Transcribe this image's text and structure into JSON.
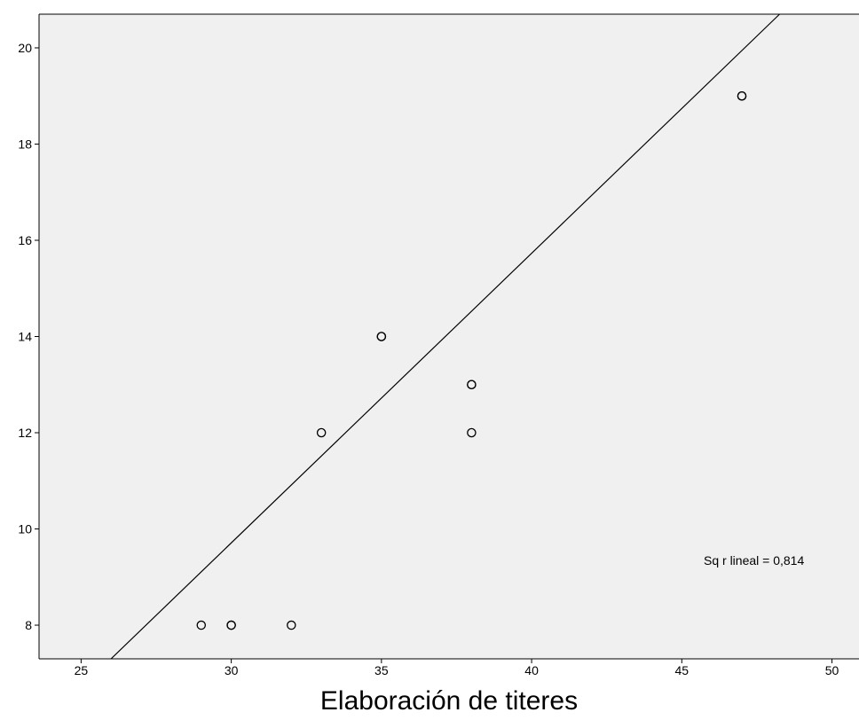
{
  "chart_data": {
    "type": "scatter",
    "title": "",
    "xlabel": "Elaboración de titeres",
    "ylabel": "",
    "xlim": [
      23.6,
      50.9
    ],
    "ylim": [
      7.3,
      20.7
    ],
    "x_ticks": [
      "25",
      "30",
      "35",
      "40",
      "45",
      "50"
    ],
    "y_ticks": [
      "8",
      "10",
      "12",
      "14",
      "16",
      "18",
      "20"
    ],
    "points": [
      {
        "x": 29,
        "y": 8
      },
      {
        "x": 30,
        "y": 8
      },
      {
        "x": 30,
        "y": 8
      },
      {
        "x": 32,
        "y": 8
      },
      {
        "x": 33,
        "y": 12
      },
      {
        "x": 35,
        "y": 14
      },
      {
        "x": 35,
        "y": 14
      },
      {
        "x": 38,
        "y": 13
      },
      {
        "x": 38,
        "y": 13
      },
      {
        "x": 38,
        "y": 12
      },
      {
        "x": 47,
        "y": 19
      },
      {
        "x": 47,
        "y": 19
      }
    ],
    "fit_line": {
      "slope": 0.602,
      "intercept": -8.35
    },
    "annotation": "Sq r lineal = 0,814",
    "grid": false,
    "colors": {
      "background": "#f0f0f0",
      "marker": "#000000",
      "line": "#000000"
    }
  }
}
